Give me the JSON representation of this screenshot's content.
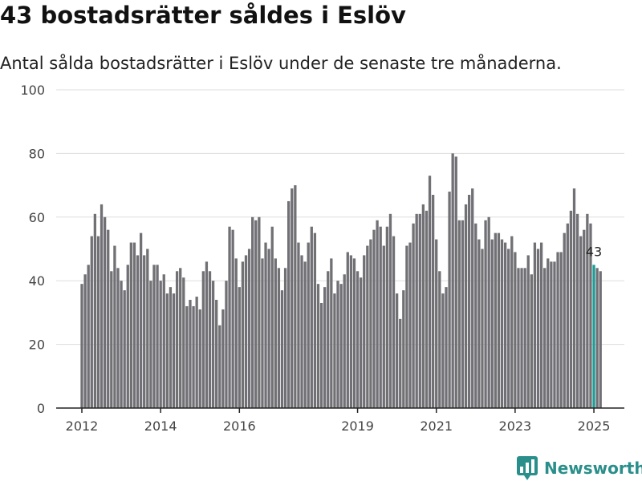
{
  "title": "43 bostadsrätter såldes i Eslöv",
  "subtitle": "Antal sålda bostadsrätter i Eslöv under de senaste tre månaderna.",
  "brand": {
    "name": "Newsworthy",
    "logo_icon": "bar-chart-pin-icon"
  },
  "colors": {
    "bar": "#707075",
    "highlight": "#1a9e96",
    "brand": "#2a8f8a"
  },
  "chart_data": {
    "type": "bar",
    "title": "43 bostadsrätter såldes i Eslöv",
    "subtitle": "Antal sålda bostadsrätter i Eslöv under de senaste tre månaderna.",
    "xlabel": "",
    "ylabel": "",
    "ylim": [
      0,
      100
    ],
    "yticks": [
      0,
      20,
      40,
      60,
      80,
      100
    ],
    "grid": true,
    "legend": "none",
    "x_start": "2012-01",
    "x_end": "2025-01",
    "xticks": [
      {
        "label": "2012",
        "date": "2012-01"
      },
      {
        "label": "2014",
        "date": "2014-01"
      },
      {
        "label": "2016",
        "date": "2016-01"
      },
      {
        "label": "2019",
        "date": "2019-01"
      },
      {
        "label": "2021",
        "date": "2021-01"
      },
      {
        "label": "2023",
        "date": "2023-01"
      },
      {
        "label": "2025",
        "date": "2025-01"
      }
    ],
    "highlight": {
      "date": "2025-01",
      "value": 43,
      "label": "43"
    },
    "values": [
      39,
      42,
      45,
      54,
      61,
      54,
      64,
      60,
      56,
      43,
      51,
      44,
      40,
      37,
      45,
      52,
      52,
      48,
      55,
      48,
      50,
      40,
      45,
      45,
      40,
      42,
      36,
      38,
      36,
      43,
      44,
      41,
      32,
      34,
      32,
      35,
      31,
      43,
      46,
      43,
      40,
      34,
      26,
      31,
      40,
      57,
      56,
      47,
      38,
      46,
      48,
      50,
      60,
      59,
      60,
      47,
      52,
      50,
      57,
      47,
      44,
      37,
      44,
      65,
      69,
      70,
      52,
      48,
      46,
      52,
      57,
      55,
      39,
      33,
      38,
      43,
      47,
      36,
      40,
      39,
      42,
      49,
      48,
      47,
      43,
      41,
      48,
      51,
      53,
      56,
      59,
      57,
      51,
      57,
      61,
      54,
      36,
      28,
      37,
      51,
      52,
      58,
      61,
      61,
      64,
      62,
      73,
      67,
      53,
      43,
      36,
      38,
      68,
      80,
      79,
      59,
      59,
      64,
      67,
      69,
      58,
      53,
      50,
      59,
      60,
      53,
      55,
      55,
      53,
      52,
      50,
      54,
      49,
      44,
      44,
      44,
      48,
      42,
      52,
      50,
      52,
      44,
      47,
      46,
      46,
      49,
      49,
      55,
      58,
      62,
      69,
      61,
      54,
      56,
      61,
      58,
      45,
      44,
      43
    ]
  }
}
